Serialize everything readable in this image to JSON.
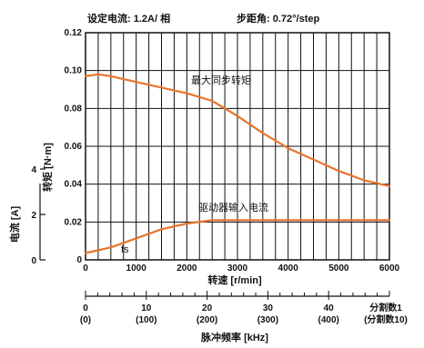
{
  "header": {
    "current_setting": "设定电流: 1.2A/ 相",
    "step_angle": "步距角: 0.72°/step"
  },
  "colors": {
    "curve": "#e8742e",
    "grid": "#111111",
    "background": "#ffffff"
  },
  "chart_data": {
    "type": "line",
    "xlabel": "转速 [r/min]",
    "ylabel": "转矩 [N·m]",
    "secondary_ylabel": "电流 [A]",
    "xlim": [
      0,
      6000
    ],
    "ylim": [
      0,
      0.12
    ],
    "secondary_ylim": [
      0,
      4
    ],
    "x_ticks": [
      "0",
      "1000",
      "2000",
      "3000",
      "4000",
      "5000",
      "6000"
    ],
    "y_ticks": [
      "0",
      "0.02",
      "0.04",
      "0.06",
      "0.08",
      "0.10",
      "0.12"
    ],
    "secondary_y_ticks": [
      "0",
      "2",
      "4"
    ],
    "grid": true,
    "series": [
      {
        "name": "最大同步转矩",
        "axis": "torque",
        "x": [
          0,
          250,
          500,
          1000,
          1500,
          2000,
          2500,
          3000,
          3500,
          4000,
          4500,
          5000,
          5500,
          6000
        ],
        "y": [
          0.097,
          0.098,
          0.097,
          0.094,
          0.091,
          0.088,
          0.084,
          0.076,
          0.067,
          0.059,
          0.053,
          0.047,
          0.042,
          0.039
        ]
      },
      {
        "name": "驱动器输入电流",
        "axis": "current",
        "x": [
          0,
          500,
          1000,
          1500,
          2000,
          2500,
          3000,
          4000,
          5000,
          6000
        ],
        "y": [
          0.3,
          0.55,
          0.95,
          1.35,
          1.6,
          1.75,
          1.75,
          1.75,
          1.75,
          1.75
        ]
      }
    ],
    "annotations": [
      "fs"
    ],
    "pulse_axis": {
      "label": "脉冲频率 [kHz]",
      "xlim": [
        0,
        50
      ],
      "ticks": [
        {
          "value": 0,
          "label": "0",
          "sub": "(0)"
        },
        {
          "value": 10,
          "label": "10",
          "sub": "(100)"
        },
        {
          "value": 20,
          "label": "20",
          "sub": "(200)"
        },
        {
          "value": 30,
          "label": "30",
          "sub": "(300)"
        },
        {
          "value": 40,
          "label": "40",
          "sub": "(400)"
        }
      ],
      "end_label": "分割数1",
      "end_sub": "(分割数10)"
    }
  }
}
